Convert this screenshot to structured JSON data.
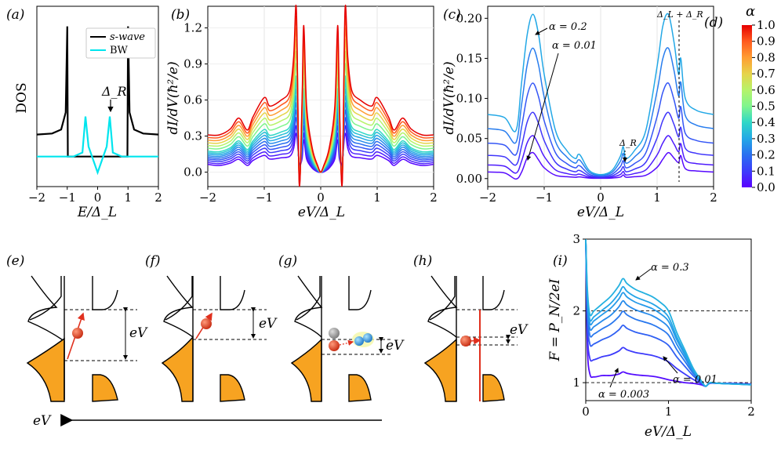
{
  "chart_data": [
    {
      "panel": "(a)",
      "type": "line",
      "xlabel": "E/Δ_L",
      "ylabel": "DOS",
      "xlim": [
        -2,
        2
      ],
      "xticks": [
        "−2",
        "−1",
        "0",
        "1",
        "2"
      ],
      "legend": [
        "s-wave",
        "BW"
      ],
      "legend_position": "top-right",
      "annotations": [
        "Δ_R"
      ],
      "series": [
        {
          "name": "s-wave",
          "color": "#000000",
          "x": [
            -2,
            -1.5,
            -1.2,
            -1.05,
            -1.0,
            -0.98,
            -0.9,
            0,
            0.9,
            0.98,
            1.0,
            1.05,
            1.2,
            1.5,
            2
          ],
          "y": [
            1.1,
            1.15,
            1.35,
            2.2,
            6.5,
            0.0,
            0.0,
            0.0,
            0.0,
            0.0,
            6.5,
            2.2,
            1.35,
            1.15,
            1.1
          ]
        },
        {
          "name": "BW",
          "color": "#00e5ee",
          "x": [
            -2,
            -1.2,
            -0.8,
            -0.5,
            -0.4,
            -0.3,
            0,
            0.3,
            0.4,
            0.5,
            0.8,
            1.2,
            2
          ],
          "y": [
            0,
            0,
            0,
            0.2,
            2.0,
            0.5,
            -0.8,
            0.5,
            2.0,
            0.2,
            0,
            0,
            0
          ]
        }
      ]
    },
    {
      "panel": "(b)",
      "type": "line",
      "xlabel": "eV/Δ_L",
      "ylabel": "dI/dV(ħ²/e)",
      "xlim": [
        -2,
        2
      ],
      "ylim": [
        -0.12,
        1.38
      ],
      "xticks": [
        "−2",
        "−1",
        "0",
        "1",
        "2"
      ],
      "yticks": [
        "0.0",
        "0.3",
        "0.6",
        "0.9",
        "1.2"
      ],
      "alpha_values": [
        0.01,
        0.05,
        0.1,
        0.15,
        0.2,
        0.25,
        0.3,
        0.35,
        0.4,
        0.5,
        0.6,
        0.7,
        0.8,
        0.9,
        1.0
      ],
      "curve_x": [
        -2,
        -1.8,
        -1.6,
        -1.45,
        -1.3,
        -1.2,
        -1.0,
        -0.9,
        -0.7,
        -0.55,
        -0.48,
        -0.43,
        -0.38,
        -0.33,
        -0.3,
        -0.25,
        -0.15,
        -0.05,
        0.0,
        0.05,
        0.15,
        0.25,
        0.3,
        0.33,
        0.38,
        0.43,
        0.48,
        0.55,
        0.7,
        0.9,
        1.0,
        1.2,
        1.3,
        1.45,
        1.6,
        1.8,
        2.0
      ],
      "curve_y_alpha_1": [
        0.31,
        0.31,
        0.36,
        0.45,
        0.35,
        0.46,
        0.62,
        0.55,
        0.6,
        0.68,
        0.95,
        1.35,
        -0.1,
        0.6,
        1.22,
        0.55,
        0.2,
        0.05,
        0.0,
        0.05,
        0.2,
        0.55,
        1.22,
        0.6,
        -0.1,
        1.35,
        0.95,
        0.68,
        0.6,
        0.55,
        0.62,
        0.46,
        0.35,
        0.45,
        0.36,
        0.31,
        0.31
      ],
      "baseline_shape": [
        0.06,
        0.05,
        0.07,
        0.1,
        0.05,
        0.09,
        0.13,
        0.1,
        0.11,
        0.12,
        0.18,
        0.3,
        0.08,
        0.1,
        0.25,
        0.1,
        0.03,
        0.0,
        0.0,
        0.0,
        0.03,
        0.1,
        0.25,
        0.1,
        0.08,
        0.3,
        0.18,
        0.12,
        0.11,
        0.1,
        0.13,
        0.09,
        0.05,
        0.1,
        0.07,
        0.05,
        0.06
      ]
    },
    {
      "panel": "(c)",
      "type": "line",
      "xlabel": "eV/Δ_L",
      "ylabel": "dI/dV(ħ²/e)",
      "xlim": [
        -2,
        2
      ],
      "ylim": [
        -0.01,
        0.215
      ],
      "xticks": [
        "−2",
        "−1",
        "0",
        "1",
        "2"
      ],
      "yticks": [
        "0.00",
        "0.05",
        "0.10",
        "0.15",
        "0.20"
      ],
      "annotations": [
        "α = 0.2",
        "α = 0.01",
        "Δ_R",
        "Δ_L + Δ_R"
      ],
      "alpha_values": [
        0.01,
        0.03,
        0.06,
        0.1,
        0.15,
        0.2
      ],
      "curve_x": [
        -2,
        -1.7,
        -1.5,
        -1.4,
        -1.3,
        -1.2,
        -1.1,
        -1.0,
        -0.8,
        -0.6,
        -0.45,
        -0.4,
        -0.35,
        -0.2,
        0,
        0.2,
        0.35,
        0.4,
        0.45,
        0.6,
        0.8,
        1.0,
        1.1,
        1.2,
        1.3,
        1.38,
        1.42,
        1.5,
        1.7,
        2.0
      ],
      "curve_y_alpha_max": [
        0.08,
        0.076,
        0.06,
        0.12,
        0.18,
        0.205,
        0.18,
        0.13,
        0.06,
        0.035,
        0.025,
        0.03,
        0.028,
        0.01,
        0.005,
        0.01,
        0.028,
        0.04,
        0.025,
        0.035,
        0.06,
        0.14,
        0.19,
        0.205,
        0.17,
        0.13,
        0.15,
        0.1,
        0.085,
        0.08
      ],
      "curve_y_alpha_min": [
        0.003,
        0.002,
        -0.005,
        0.0,
        0.015,
        0.02,
        0.012,
        0.005,
        0.0,
        0.0,
        0.0,
        0.0,
        0.0,
        0.0,
        0.0,
        0.0,
        0.0,
        0.002,
        0.0,
        0.0,
        0.0,
        0.005,
        0.012,
        0.02,
        0.015,
        0.012,
        0.02,
        0.006,
        0.004,
        0.003
      ]
    },
    {
      "panel": "(d)",
      "type": "colorbar",
      "title": "α",
      "range": [
        0.0,
        1.0
      ],
      "ticks": [
        "0.0",
        "0.1",
        "0.2",
        "0.3",
        "0.4",
        "0.5",
        "0.6",
        "0.7",
        "0.8",
        "0.9",
        "1.0"
      ],
      "colormap": "rainbow"
    },
    {
      "panel": "(i)",
      "type": "line",
      "xlabel": "eV/Δ_L",
      "ylabel": "F = P_N/2eI",
      "xlim": [
        0,
        2
      ],
      "ylim": [
        0.75,
        3.0
      ],
      "xticks": [
        "0",
        "1",
        "2"
      ],
      "yticks": [
        "1",
        "2",
        "3"
      ],
      "hlines": [
        1,
        2
      ],
      "annotations": [
        "α = 0.3",
        "α = 0.01",
        "α = 0.003"
      ],
      "alpha_values": [
        0.003,
        0.01,
        0.03,
        0.06,
        0.1,
        0.15,
        0.2,
        0.3
      ],
      "curve_x": [
        0.0,
        0.02,
        0.05,
        0.1,
        0.2,
        0.3,
        0.4,
        0.45,
        0.5,
        0.6,
        0.7,
        0.8,
        0.9,
        1.0,
        1.1,
        1.2,
        1.3,
        1.4,
        1.45,
        1.5,
        1.6,
        1.8,
        2.0
      ],
      "curve_y_alpha_max": [
        3.0,
        2.3,
        1.95,
        2.0,
        2.1,
        2.2,
        2.35,
        2.45,
        2.38,
        2.3,
        2.25,
        2.2,
        2.12,
        2.0,
        1.7,
        1.45,
        1.2,
        1.02,
        0.95,
        1.0,
        0.99,
        0.98,
        0.97
      ],
      "curve_y_alpha_min": [
        3.0,
        1.5,
        1.12,
        1.08,
        1.1,
        1.1,
        1.12,
        1.15,
        1.13,
        1.11,
        1.1,
        1.09,
        1.07,
        1.04,
        1.02,
        1.0,
        0.99,
        0.97,
        0.95,
        0.99,
        0.99,
        0.99,
        0.98
      ]
    }
  ],
  "figure": {
    "panel_labels": [
      "(a)",
      "(b)",
      "(c)",
      "(d)",
      "(e)",
      "(f)",
      "(g)",
      "(h)",
      "(i)"
    ],
    "schematic_energy_label": "eV",
    "bottom_arrow_label": "eV"
  }
}
